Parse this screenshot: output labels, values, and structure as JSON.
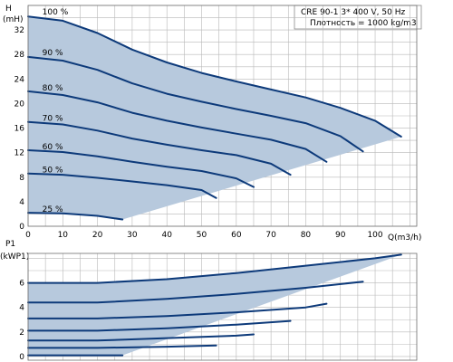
{
  "chart_data": [
    {
      "type": "line",
      "title": "",
      "xlabel": "Q(m3/h)",
      "ylabel_top": "H",
      "ylabel_unit": "(mH)",
      "x_ticks": [
        "0",
        "10",
        "20",
        "30",
        "40",
        "50",
        "60",
        "70",
        "80",
        "90",
        "100"
      ],
      "y_ticks": [
        "0",
        "4",
        "8",
        "12",
        "16",
        "20",
        "24",
        "28",
        "32"
      ],
      "xlim": [
        0,
        112
      ],
      "ylim": [
        0,
        36
      ],
      "grid": true,
      "fill_color": "#b7c9dd",
      "curve_color": "#0d3a7a",
      "info_line1": "CRE 90-1    3* 400 V, 50 Hz",
      "info_line2": "Плотность = 1000 kg/m3",
      "series": [
        {
          "name": "100 %",
          "x": [
            0,
            10,
            20,
            30,
            40,
            50,
            60,
            70,
            80,
            90,
            100,
            107.5
          ],
          "y": [
            34.2,
            33.5,
            31.5,
            28.8,
            26.7,
            25.0,
            23.6,
            22.3,
            21.0,
            19.3,
            17.2,
            14.6
          ]
        },
        {
          "name": "90 %",
          "x": [
            0,
            10,
            20,
            30,
            40,
            50,
            60,
            70,
            80,
            90,
            96.5
          ],
          "y": [
            27.6,
            27.0,
            25.5,
            23.3,
            21.6,
            20.3,
            19.1,
            18.0,
            16.8,
            14.7,
            12.2
          ]
        },
        {
          "name": "80 %",
          "x": [
            0,
            10,
            20,
            30,
            40,
            50,
            60,
            70,
            80,
            86
          ],
          "y": [
            22.0,
            21.4,
            20.2,
            18.5,
            17.2,
            16.1,
            15.1,
            14.1,
            12.6,
            10.5
          ]
        },
        {
          "name": "70 %",
          "x": [
            0,
            10,
            20,
            30,
            40,
            50,
            60,
            70,
            75.6
          ],
          "y": [
            17.0,
            16.6,
            15.6,
            14.3,
            13.3,
            12.4,
            11.6,
            10.2,
            8.4
          ]
        },
        {
          "name": "60 %",
          "x": [
            0,
            10,
            20,
            30,
            40,
            50,
            60,
            65
          ],
          "y": [
            12.4,
            12.1,
            11.4,
            10.5,
            9.7,
            9.0,
            7.8,
            6.4
          ]
        },
        {
          "name": "50 %",
          "x": [
            0,
            10,
            20,
            30,
            40,
            50,
            54.2
          ],
          "y": [
            8.6,
            8.4,
            7.9,
            7.3,
            6.7,
            5.9,
            4.6
          ]
        },
        {
          "name": "25 %",
          "x": [
            0,
            10,
            20,
            27.2
          ],
          "y": [
            2.2,
            2.1,
            1.7,
            1.1
          ]
        }
      ],
      "curve_labels": [
        {
          "text": "100 %",
          "x": 2.0,
          "y": 35.0
        },
        {
          "text": "90 %",
          "x": 2.0,
          "y": 28.3
        },
        {
          "text": "80 %",
          "x": 2.0,
          "y": 22.6
        },
        {
          "text": "70 %",
          "x": 2.0,
          "y": 17.6
        },
        {
          "text": "60 %",
          "x": 2.0,
          "y": 13.0
        },
        {
          "text": "50 %",
          "x": 2.0,
          "y": 9.2
        },
        {
          "text": "25 %",
          "x": 2.0,
          "y": 2.8
        }
      ]
    },
    {
      "type": "line",
      "title": "",
      "xlabel": "",
      "ylabel_top": "P1",
      "ylabel_unit": "(kW",
      "ylabel_unit_suffix": "P1)",
      "x_ticks": [],
      "y_ticks": [
        "0",
        "2",
        "4",
        "6"
      ],
      "xlim": [
        0,
        112
      ],
      "ylim": [
        -0.3,
        8.4
      ],
      "grid": true,
      "series": [
        {
          "name": "",
          "x": [
            0,
            20,
            40,
            60,
            80,
            100,
            107.5
          ],
          "y": [
            6.0,
            6.0,
            6.3,
            6.8,
            7.4,
            8.0,
            8.3
          ]
        },
        {
          "name": "",
          "x": [
            0,
            20,
            40,
            60,
            80,
            96.5
          ],
          "y": [
            4.4,
            4.4,
            4.7,
            5.1,
            5.6,
            6.1
          ]
        },
        {
          "name": "",
          "x": [
            0,
            20,
            40,
            60,
            80,
            86
          ],
          "y": [
            3.1,
            3.1,
            3.3,
            3.6,
            4.0,
            4.3
          ]
        },
        {
          "name": "",
          "x": [
            0,
            20,
            40,
            60,
            75.6
          ],
          "y": [
            2.1,
            2.1,
            2.3,
            2.6,
            2.9
          ]
        },
        {
          "name": "",
          "x": [
            0,
            20,
            40,
            60,
            65
          ],
          "y": [
            1.3,
            1.3,
            1.5,
            1.7,
            1.8
          ]
        },
        {
          "name": "",
          "x": [
            0,
            20,
            40,
            54.2
          ],
          "y": [
            0.7,
            0.7,
            0.8,
            0.9
          ]
        },
        {
          "name": "",
          "x": [
            0,
            10,
            20,
            27.2
          ],
          "y": [
            0.1,
            0.1,
            0.1,
            0.1
          ]
        }
      ]
    }
  ]
}
